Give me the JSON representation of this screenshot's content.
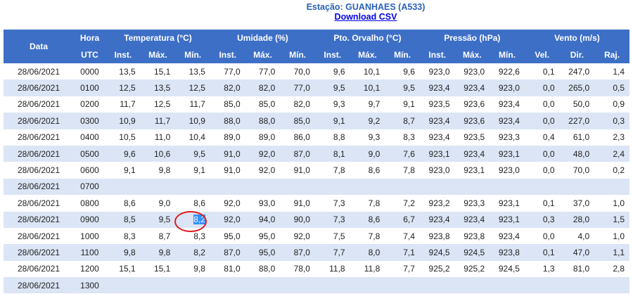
{
  "header": {
    "station": "Estação: GUANHAES (A533)",
    "link": "Download CSV"
  },
  "table": {
    "head1": [
      "Data",
      "Hora",
      "Temperatura (°C)",
      "Umidade (%)",
      "Pto. Orvalho (°C)",
      "Pressão (hPa)",
      "Vento (m/s)"
    ],
    "head2": [
      "UTC",
      "Inst.",
      "Máx.",
      "Mín.",
      "Inst.",
      "Máx.",
      "Mín.",
      "Inst.",
      "Máx.",
      "Mín.",
      "Inst.",
      "Máx.",
      "Mín.",
      "Vel.",
      "Dir.",
      "Raj."
    ],
    "rows": [
      [
        "28/06/2021",
        "0000",
        "13,5",
        "15,1",
        "13,5",
        "77,0",
        "77,0",
        "70,0",
        "9,6",
        "10,1",
        "9,6",
        "923,0",
        "923,0",
        "922,6",
        "0,1",
        "247,0",
        "1,4"
      ],
      [
        "28/06/2021",
        "0100",
        "12,5",
        "13,5",
        "12,5",
        "82,0",
        "82,0",
        "77,0",
        "9,5",
        "10,1",
        "9,5",
        "923,4",
        "923,4",
        "923,0",
        "0,0",
        "265,0",
        "0,5"
      ],
      [
        "28/06/2021",
        "0200",
        "11,7",
        "12,5",
        "11,7",
        "85,0",
        "85,0",
        "82,0",
        "9,3",
        "9,7",
        "9,1",
        "923,5",
        "923,6",
        "923,4",
        "0,0",
        "50,0",
        "0,9"
      ],
      [
        "28/06/2021",
        "0300",
        "10,9",
        "11,7",
        "10,9",
        "88,0",
        "88,0",
        "85,0",
        "9,1",
        "9,2",
        "8,7",
        "923,4",
        "923,6",
        "923,4",
        "0,0",
        "227,0",
        "0,3"
      ],
      [
        "28/06/2021",
        "0400",
        "10,5",
        "11,0",
        "10,4",
        "89,0",
        "89,0",
        "86,0",
        "8,8",
        "9,3",
        "8,3",
        "923,4",
        "923,5",
        "923,3",
        "0,4",
        "61,0",
        "2,3"
      ],
      [
        "28/06/2021",
        "0500",
        "9,6",
        "10,6",
        "9,5",
        "91,0",
        "92,0",
        "87,0",
        "8,1",
        "9,0",
        "7,6",
        "923,1",
        "923,4",
        "923,1",
        "0,0",
        "48,0",
        "2,4"
      ],
      [
        "28/06/2021",
        "0600",
        "9,1",
        "9,8",
        "9,1",
        "91,0",
        "92,0",
        "91,0",
        "7,8",
        "8,6",
        "7,8",
        "923,0",
        "923,1",
        "923,0",
        "0,0",
        "70,0",
        "0,2"
      ],
      [
        "28/06/2021",
        "0700"
      ],
      [
        "28/06/2021",
        "0800",
        "8,6",
        "9,0",
        "8,6",
        "92,0",
        "93,0",
        "91,0",
        "7,3",
        "7,8",
        "7,2",
        "923,2",
        "923,3",
        "923,1",
        "0,1",
        "37,0",
        "1,0"
      ],
      [
        "28/06/2021",
        "0900",
        "8,5",
        "9,5",
        "8,2",
        "92,0",
        "94,0",
        "90,0",
        "7,3",
        "8,6",
        "6,7",
        "923,4",
        "923,4",
        "923,1",
        "0,3",
        "28,0",
        "1,5"
      ],
      [
        "28/06/2021",
        "1000",
        "8,3",
        "8,7",
        "8,3",
        "95,0",
        "95,0",
        "92,0",
        "7,5",
        "7,8",
        "7,4",
        "923,8",
        "923,8",
        "923,4",
        "0,0",
        "4,0",
        "1,0"
      ],
      [
        "28/06/2021",
        "1100",
        "9,8",
        "9,8",
        "8,2",
        "87,0",
        "95,0",
        "87,0",
        "7,7",
        "8,0",
        "7,1",
        "924,5",
        "924,5",
        "923,8",
        "0,1",
        "47,0",
        "1,1"
      ],
      [
        "28/06/2021",
        "1200",
        "15,1",
        "15,1",
        "9,8",
        "81,0",
        "88,0",
        "78,0",
        "11,8",
        "11,8",
        "7,7",
        "925,2",
        "925,2",
        "924,5",
        "1,3",
        "81,0",
        "2,8"
      ],
      [
        "28/06/2021",
        "1300"
      ]
    ]
  }
}
